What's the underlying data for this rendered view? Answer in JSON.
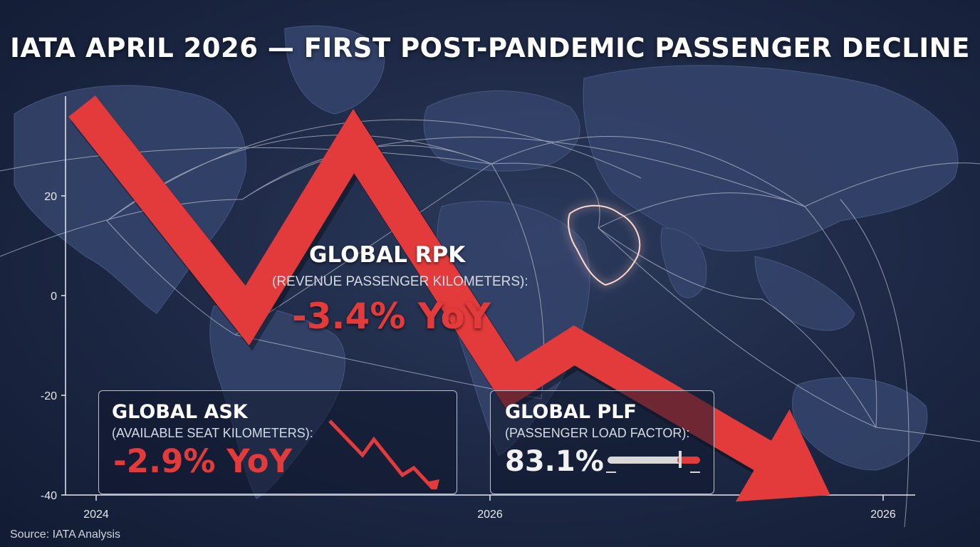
{
  "title": "IATA APRIL 2026 — FIRST POST-PANDEMIC PASSENGER DECLINE",
  "source": "Source: IATA Analysis",
  "colors": {
    "accent_red": "#e33b3b",
    "background": "#1e2a47",
    "route_lines": "#e8ecf4"
  },
  "rpk": {
    "title": "GLOBAL RPK",
    "subtitle": "(REVENUE PASSENGER KILOMETERS):",
    "value": "-3.4% YoY"
  },
  "ask": {
    "title": "GLOBAL ASK",
    "subtitle": "(AVAILABLE SEAT KILOMETERS):",
    "value": "-2.9% YoY",
    "icon": "declining-trend-arrow-icon"
  },
  "plf": {
    "title": "GLOBAL PLF",
    "subtitle": "(PASSENGER LOAD FACTOR):",
    "value": "83.1%",
    "icon": "load-factor-bar-icon"
  },
  "chart_data": {
    "type": "line",
    "title": "IATA APRIL 2026 — FIRST POST-PANDEMIC PASSENGER DECLINE",
    "xlabel": "",
    "ylabel": "",
    "x_ticks": [
      "2024",
      "2026",
      "2026"
    ],
    "y_ticks": [
      20,
      0,
      -20,
      -40
    ],
    "ylim": [
      -40,
      20
    ],
    "grid": false,
    "series": [
      {
        "x": [
          0.0,
          0.42,
          0.69,
          1.09,
          1.25,
          1.9
        ],
        "y": [
          38,
          -4,
          31,
          -18,
          -10,
          -40
        ]
      }
    ],
    "background": "world map with flight routes, Middle East highlighted"
  }
}
